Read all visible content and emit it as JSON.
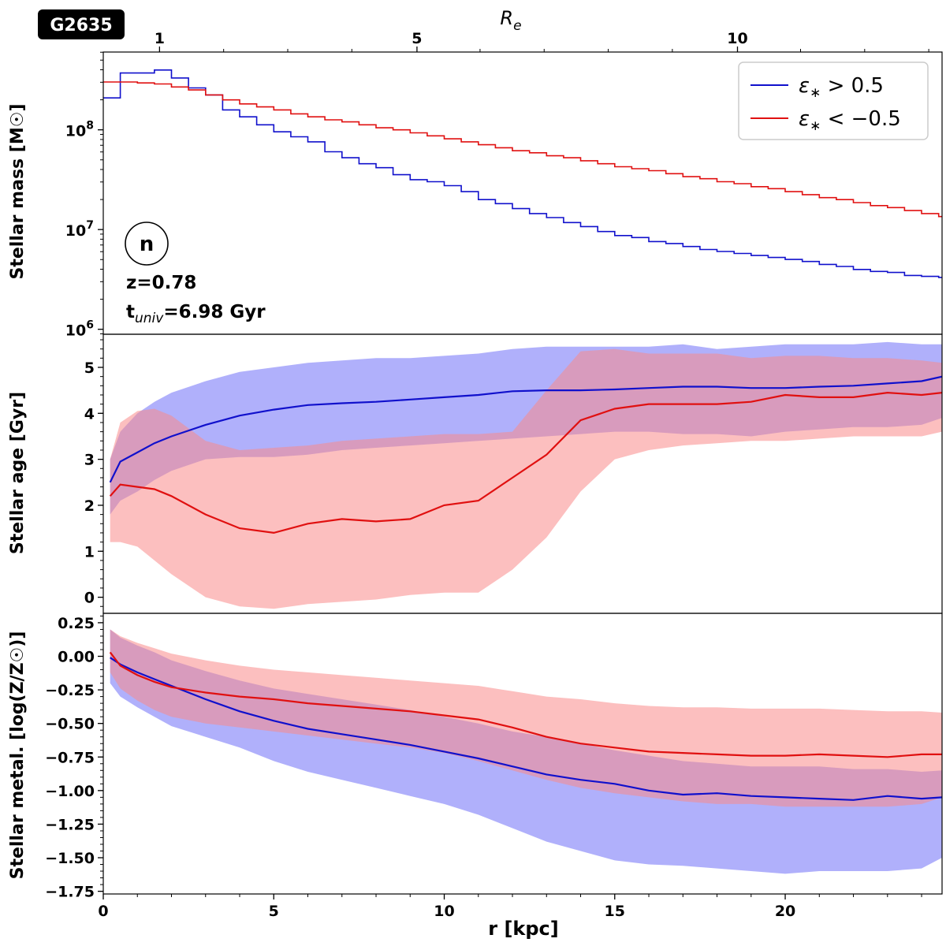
{
  "figure": {
    "galaxy_id": "G2635",
    "panel_letter": "n",
    "redshift_label": "z=0.78",
    "age_universe_label": {
      "prefix": "t",
      "subscript": "univ",
      "suffix": "=6.98 Gyr"
    },
    "top_axis_label": "R",
    "top_axis_subscript": "e"
  },
  "chart_data": [
    {
      "type": "line",
      "panel": "stellar-mass",
      "ylabel": "Stellar mass [M☉]",
      "yscale": "log",
      "ylim_log10": [
        5.95,
        8.78
      ],
      "y_ticks": [
        {
          "base": "10",
          "exp": "6",
          "value": 6
        },
        {
          "base": "10",
          "exp": "7",
          "value": 7
        },
        {
          "base": "10",
          "exp": "8",
          "value": 8
        }
      ],
      "xlim": [
        0,
        24.6
      ],
      "bin_width": 0.5,
      "series": [
        {
          "name": "ε* > 0.5",
          "label_parts": [
            "ε",
            "∗",
            " > 0.5"
          ],
          "color": "#1010cc",
          "log10_values": [
            8.32,
            8.57,
            8.57,
            8.6,
            8.52,
            8.42,
            8.35,
            8.2,
            8.13,
            8.05,
            7.98,
            7.93,
            7.88,
            7.78,
            7.72,
            7.66,
            7.62,
            7.55,
            7.5,
            7.48,
            7.44,
            7.38,
            7.3,
            7.26,
            7.21,
            7.16,
            7.12,
            7.07,
            7.03,
            6.98,
            6.94,
            6.92,
            6.88,
            6.86,
            6.83,
            6.8,
            6.78,
            6.76,
            6.74,
            6.72,
            6.7,
            6.68,
            6.65,
            6.63,
            6.6,
            6.58,
            6.57,
            6.54,
            6.53,
            6.52,
            6.51,
            6.5,
            6.48,
            6.47,
            6.46,
            6.45,
            6.44,
            6.43,
            6.42,
            6.42,
            6.4,
            6.38,
            6.37,
            6.36,
            6.35,
            6.34,
            6.33,
            6.32,
            6.3,
            6.29,
            6.28,
            6.27,
            6.26,
            6.25,
            6.24,
            6.23,
            6.23,
            6.22,
            6.22,
            6.21,
            6.2,
            6.2,
            6.19,
            6.19,
            6.18,
            6.18,
            6.17,
            6.17,
            6.16,
            6.16,
            6.15,
            6.16,
            6.15,
            6.18,
            6.15,
            6.18,
            6.16,
            6.0,
            6.0
          ]
        },
        {
          "name": "ε* < -0.5",
          "label_parts": [
            "ε",
            "∗",
            " < −0.5"
          ],
          "color": "#e01010",
          "log10_values": [
            8.48,
            8.48,
            8.47,
            8.46,
            8.43,
            8.4,
            8.35,
            8.3,
            8.26,
            8.23,
            8.2,
            8.16,
            8.13,
            8.1,
            8.08,
            8.05,
            8.02,
            8.0,
            7.97,
            7.94,
            7.91,
            7.88,
            7.85,
            7.82,
            7.79,
            7.77,
            7.74,
            7.72,
            7.69,
            7.66,
            7.63,
            7.61,
            7.59,
            7.56,
            7.53,
            7.51,
            7.48,
            7.46,
            7.43,
            7.41,
            7.38,
            7.35,
            7.32,
            7.3,
            7.27,
            7.24,
            7.22,
            7.19,
            7.16,
            7.13,
            7.1,
            7.08,
            7.06,
            7.03,
            7.01,
            6.99,
            6.97,
            6.95,
            6.93,
            6.91,
            6.9,
            6.88,
            6.87,
            6.86,
            6.85,
            6.84,
            6.83,
            6.82,
            6.8,
            6.79,
            6.78,
            6.76,
            6.74,
            6.72,
            6.7,
            6.68,
            6.66,
            6.64,
            6.62,
            6.6,
            6.58,
            6.56,
            6.54,
            6.52,
            6.5,
            6.49,
            6.48,
            6.47,
            6.47,
            6.46,
            6.46,
            6.45,
            6.44,
            6.53,
            6.43,
            6.4,
            6.35,
            6.31,
            6.28
          ]
        }
      ]
    },
    {
      "type": "area",
      "panel": "stellar-age",
      "ylabel": "Stellar age [Gyr]",
      "ylim": [
        -0.35,
        5.72
      ],
      "y_ticks": [
        0,
        1,
        2,
        3,
        4,
        5
      ],
      "xlim": [
        0,
        24.6
      ],
      "series": [
        {
          "name": "ε* > 0.5",
          "line_color": "#1010cc",
          "fill_color": "#6f6ff8",
          "x": [
            0.2,
            0.5,
            1,
            1.5,
            2,
            3,
            4,
            5,
            6,
            7,
            8,
            9,
            10,
            11,
            12,
            13,
            14,
            15,
            16,
            17,
            18,
            19,
            20,
            21,
            22,
            23,
            24,
            24.6
          ],
          "median": [
            2.5,
            2.95,
            3.15,
            3.35,
            3.5,
            3.75,
            3.95,
            4.08,
            4.18,
            4.22,
            4.25,
            4.3,
            4.35,
            4.4,
            4.48,
            4.5,
            4.5,
            4.52,
            4.55,
            4.58,
            4.58,
            4.55,
            4.55,
            4.58,
            4.6,
            4.65,
            4.7,
            4.8
          ],
          "upper": [
            3.0,
            3.6,
            4.0,
            4.25,
            4.45,
            4.7,
            4.9,
            5.0,
            5.1,
            5.15,
            5.2,
            5.2,
            5.25,
            5.3,
            5.4,
            5.45,
            5.45,
            5.45,
            5.45,
            5.5,
            5.4,
            5.45,
            5.5,
            5.5,
            5.5,
            5.55,
            5.5,
            5.5
          ],
          "lower": [
            1.8,
            2.1,
            2.3,
            2.55,
            2.75,
            3.0,
            3.05,
            3.05,
            3.1,
            3.2,
            3.25,
            3.3,
            3.35,
            3.4,
            3.45,
            3.5,
            3.55,
            3.6,
            3.6,
            3.55,
            3.55,
            3.5,
            3.6,
            3.65,
            3.7,
            3.7,
            3.75,
            3.9
          ]
        },
        {
          "name": "ε* < -0.5",
          "line_color": "#e01010",
          "fill_color": "#f98a8a",
          "x": [
            0.2,
            0.5,
            1,
            1.5,
            2,
            3,
            4,
            5,
            6,
            7,
            8,
            9,
            10,
            11,
            12,
            13,
            14,
            15,
            16,
            17,
            18,
            19,
            20,
            21,
            22,
            23,
            24,
            24.6
          ],
          "median": [
            2.2,
            2.45,
            2.4,
            2.35,
            2.2,
            1.8,
            1.5,
            1.4,
            1.6,
            1.7,
            1.65,
            1.7,
            2.0,
            2.1,
            2.6,
            3.1,
            3.85,
            4.1,
            4.2,
            4.2,
            4.2,
            4.25,
            4.4,
            4.35,
            4.35,
            4.45,
            4.4,
            4.45
          ],
          "upper": [
            3.0,
            3.8,
            4.05,
            4.1,
            3.95,
            3.4,
            3.2,
            3.25,
            3.3,
            3.4,
            3.45,
            3.5,
            3.55,
            3.55,
            3.6,
            4.5,
            5.35,
            5.4,
            5.3,
            5.3,
            5.3,
            5.2,
            5.25,
            5.25,
            5.2,
            5.2,
            5.15,
            5.1
          ],
          "lower": [
            1.2,
            1.2,
            1.1,
            0.8,
            0.5,
            0.0,
            -0.2,
            -0.25,
            -0.15,
            -0.1,
            -0.05,
            0.05,
            0.1,
            0.1,
            0.6,
            1.3,
            2.3,
            3.0,
            3.2,
            3.3,
            3.35,
            3.4,
            3.4,
            3.45,
            3.5,
            3.5,
            3.5,
            3.6
          ]
        }
      ]
    },
    {
      "type": "area",
      "panel": "stellar-metallicity",
      "ylabel": "Stellar metal. [log(Z/Z☉)]",
      "xlabel": "r [kpc]",
      "ylim": [
        -1.77,
        0.32
      ],
      "y_ticks": [
        0.25,
        0.0,
        -0.25,
        -0.5,
        -0.75,
        -1.0,
        -1.25,
        -1.5,
        -1.75
      ],
      "y_tick_labels": [
        "0.25",
        "0.00",
        "−0.25",
        "−0.50",
        "−0.75",
        "−1.00",
        "−1.25",
        "−1.50",
        "−1.75"
      ],
      "xlim": [
        0,
        24.6
      ],
      "x_ticks": [
        0,
        5,
        10,
        15,
        20
      ],
      "series": [
        {
          "name": "ε* > 0.5",
          "line_color": "#1010cc",
          "fill_color": "#6f6ff8",
          "x": [
            0.2,
            0.5,
            1,
            1.5,
            2,
            3,
            4,
            5,
            6,
            7,
            8,
            9,
            10,
            11,
            12,
            13,
            14,
            15,
            16,
            17,
            18,
            19,
            20,
            21,
            22,
            23,
            24,
            24.6
          ],
          "median": [
            -0.01,
            -0.06,
            -0.12,
            -0.17,
            -0.22,
            -0.32,
            -0.41,
            -0.48,
            -0.54,
            -0.58,
            -0.62,
            -0.66,
            -0.71,
            -0.76,
            -0.82,
            -0.88,
            -0.92,
            -0.95,
            -1.0,
            -1.03,
            -1.02,
            -1.04,
            -1.05,
            -1.06,
            -1.07,
            -1.04,
            -1.06,
            -1.05
          ],
          "upper": [
            0.2,
            0.14,
            0.08,
            0.03,
            -0.03,
            -0.11,
            -0.18,
            -0.24,
            -0.28,
            -0.32,
            -0.36,
            -0.4,
            -0.45,
            -0.5,
            -0.56,
            -0.6,
            -0.65,
            -0.7,
            -0.74,
            -0.78,
            -0.8,
            -0.82,
            -0.82,
            -0.82,
            -0.84,
            -0.84,
            -0.86,
            -0.85
          ],
          "lower": [
            -0.2,
            -0.3,
            -0.38,
            -0.45,
            -0.52,
            -0.6,
            -0.68,
            -0.78,
            -0.86,
            -0.92,
            -0.98,
            -1.04,
            -1.1,
            -1.18,
            -1.28,
            -1.38,
            -1.45,
            -1.52,
            -1.55,
            -1.56,
            -1.58,
            -1.6,
            -1.62,
            -1.6,
            -1.6,
            -1.6,
            -1.58,
            -1.5
          ]
        },
        {
          "name": "ε* < -0.5",
          "line_color": "#e01010",
          "fill_color": "#f98a8a",
          "x": [
            0.2,
            0.5,
            1,
            1.5,
            2,
            3,
            4,
            5,
            6,
            7,
            8,
            9,
            10,
            11,
            12,
            13,
            14,
            15,
            16,
            17,
            18,
            19,
            20,
            21,
            22,
            23,
            24,
            24.6
          ],
          "median": [
            0.03,
            -0.07,
            -0.14,
            -0.19,
            -0.23,
            -0.27,
            -0.3,
            -0.32,
            -0.35,
            -0.37,
            -0.39,
            -0.41,
            -0.44,
            -0.47,
            -0.53,
            -0.6,
            -0.65,
            -0.68,
            -0.71,
            -0.72,
            -0.73,
            -0.74,
            -0.74,
            -0.73,
            -0.74,
            -0.75,
            -0.73,
            -0.73
          ],
          "upper": [
            0.2,
            0.15,
            0.1,
            0.06,
            0.02,
            -0.03,
            -0.07,
            -0.1,
            -0.12,
            -0.14,
            -0.16,
            -0.18,
            -0.2,
            -0.22,
            -0.26,
            -0.3,
            -0.32,
            -0.35,
            -0.37,
            -0.38,
            -0.38,
            -0.39,
            -0.39,
            -0.39,
            -0.4,
            -0.41,
            -0.41,
            -0.42
          ],
          "lower": [
            -0.12,
            -0.24,
            -0.33,
            -0.4,
            -0.45,
            -0.5,
            -0.53,
            -0.56,
            -0.59,
            -0.62,
            -0.65,
            -0.68,
            -0.72,
            -0.78,
            -0.85,
            -0.92,
            -0.98,
            -1.02,
            -1.05,
            -1.08,
            -1.1,
            -1.1,
            -1.12,
            -1.12,
            -1.12,
            -1.12,
            -1.1,
            -1.05
          ]
        }
      ]
    }
  ],
  "top_axis": {
    "label": "R",
    "subscript": "e",
    "ticks": [
      {
        "label": "1",
        "r_kpc": 1.65
      },
      {
        "label": "5",
        "r_kpc": 9.2
      },
      {
        "label": "10",
        "r_kpc": 18.6
      }
    ]
  }
}
